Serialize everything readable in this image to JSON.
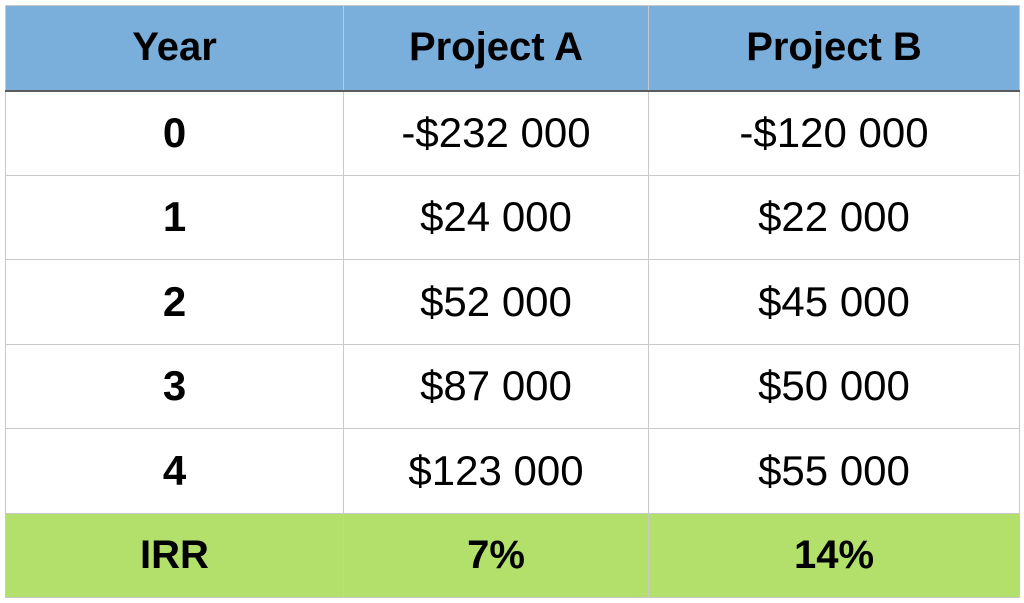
{
  "table": {
    "headers": [
      "Year",
      "Project A",
      "Project B"
    ],
    "rows": [
      [
        "0",
        "-$232 000",
        "-$120 000"
      ],
      [
        "1",
        "$24 000",
        "$22 000"
      ],
      [
        "2",
        "$52 000",
        "$45 000"
      ],
      [
        "3",
        "$87 000",
        "$50 000"
      ],
      [
        "4",
        "$123 000",
        "$55 000"
      ]
    ],
    "footer": [
      "IRR",
      "7%",
      "14%"
    ]
  },
  "colors": {
    "header_bg": "#7aaedb",
    "footer_bg": "#b2e06b",
    "border": "#c9c9c9"
  }
}
